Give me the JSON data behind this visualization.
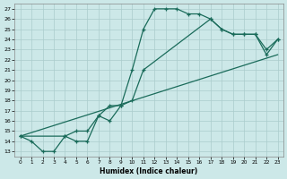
{
  "xlabel": "Humidex (Indice chaleur)",
  "background_color": "#cce8e8",
  "grid_color": "#aacccc",
  "line_color": "#1a6b5a",
  "xlim": [
    -0.5,
    23.5
  ],
  "ylim": [
    12.5,
    27.5
  ],
  "xticks": [
    0,
    1,
    2,
    3,
    4,
    5,
    6,
    7,
    8,
    9,
    10,
    11,
    12,
    13,
    14,
    15,
    16,
    17,
    18,
    19,
    20,
    21,
    22,
    23
  ],
  "yticks": [
    13,
    14,
    15,
    16,
    17,
    18,
    19,
    20,
    21,
    22,
    23,
    24,
    25,
    26,
    27
  ],
  "curve1_x": [
    0,
    1,
    2,
    3,
    4,
    5,
    6,
    7,
    8,
    9,
    10,
    11,
    12,
    13,
    14,
    15,
    16,
    17,
    18,
    19,
    20,
    21,
    22,
    23
  ],
  "curve1_y": [
    14.5,
    14.0,
    13.0,
    13.0,
    14.5,
    14.0,
    14.0,
    16.5,
    17.5,
    17.5,
    21.0,
    25.0,
    27.0,
    27.0,
    27.0,
    26.5,
    26.5,
    26.0,
    25.0,
    24.5,
    24.5,
    24.5,
    23.0,
    24.0
  ],
  "curve2_x": [
    0,
    4,
    5,
    6,
    7,
    8,
    9,
    10,
    11,
    17,
    18,
    19,
    20,
    21,
    22,
    23
  ],
  "curve2_y": [
    14.5,
    14.5,
    15.0,
    15.0,
    16.5,
    16.0,
    17.5,
    18.0,
    21.0,
    26.0,
    25.0,
    24.5,
    24.5,
    24.5,
    22.5,
    24.0
  ],
  "curve3_x": [
    0,
    23
  ],
  "curve3_y": [
    14.5,
    22.5
  ]
}
